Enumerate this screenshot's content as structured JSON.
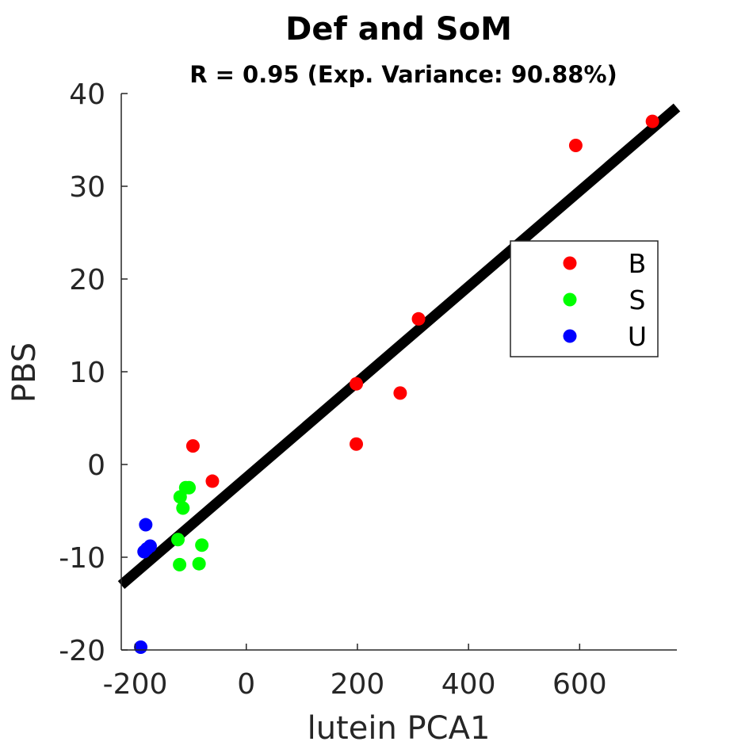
{
  "chart_data": {
    "type": "scatter",
    "title": "Def and SoM",
    "subtitle": "R = 0.95 (Exp. Variance: 90.88%)",
    "xlabel": "lutein PCA1",
    "ylabel": "PBS",
    "xlim": [
      -225,
      775
    ],
    "ylim": [
      -20,
      40
    ],
    "xticks": [
      -200,
      0,
      200,
      400,
      600
    ],
    "xtick_labels": [
      "-200",
      "0",
      "200",
      "400",
      "600"
    ],
    "yticks": [
      -20,
      -10,
      0,
      10,
      20,
      30,
      40
    ],
    "ytick_labels": [
      "-20",
      "-10",
      "0",
      "10",
      "20",
      "30",
      "40"
    ],
    "grid": false,
    "legend_position": "right",
    "series": [
      {
        "name": "B",
        "color": "#ff0000",
        "points": [
          [
            -96,
            2.0
          ],
          [
            -61,
            -1.8
          ],
          [
            198,
            8.7
          ],
          [
            198,
            2.2
          ],
          [
            277,
            7.7
          ],
          [
            310,
            15.7
          ],
          [
            593,
            34.4
          ],
          [
            731,
            37.0
          ]
        ]
      },
      {
        "name": "S",
        "color": "#00ff00",
        "points": [
          [
            -109,
            -2.5
          ],
          [
            -103,
            -2.5
          ],
          [
            -119,
            -3.5
          ],
          [
            -114,
            -4.7
          ],
          [
            -123,
            -8.1
          ],
          [
            -80,
            -8.7
          ],
          [
            -120,
            -10.8
          ],
          [
            -85,
            -10.7
          ]
        ]
      },
      {
        "name": "U",
        "color": "#0000ff",
        "points": [
          [
            -181,
            -6.5
          ],
          [
            -173,
            -8.8
          ],
          [
            -184,
            -9.4
          ],
          [
            -179,
            -9.1
          ],
          [
            -190,
            -19.7
          ]
        ]
      }
    ],
    "fit_line": {
      "color": "#000000",
      "points": [
        [
          -225,
          -13.0
        ],
        [
          775,
          38.5
        ]
      ]
    }
  }
}
